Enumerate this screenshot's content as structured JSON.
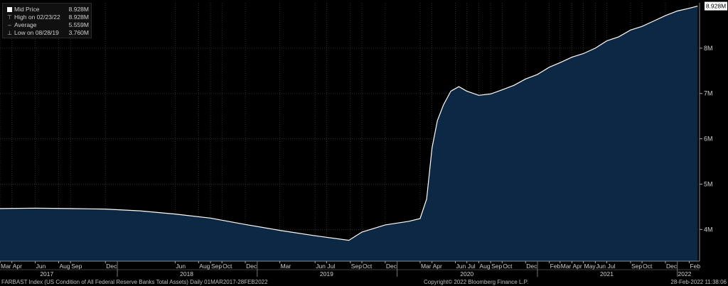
{
  "legend": {
    "mid_label": "Mid Price",
    "mid_value": "8.928M",
    "high_label": "High on 02/23/22",
    "high_value": "8.928M",
    "avg_label": "Average",
    "avg_value": "5.559M",
    "low_label": "Low on 08/28/19",
    "low_value": "3.760M"
  },
  "last_price_tag": "8.928M",
  "footer": {
    "left": "FARBAST Index (US Condition of All Federal Reserve Banks Total Assets)  Daily 01MAR2017-28FEB2022",
    "center": "Copyright© 2022 Bloomberg Finance L.P.",
    "right": "28-Feb-2022 11:38:06"
  },
  "colors": {
    "background": "#000000",
    "area_fill": "#0d2845",
    "line": "#ffffff",
    "grid": "#3a3a3a",
    "text": "#cfcfcf"
  },
  "chart_data": {
    "type": "area",
    "title": "",
    "xlabel": "",
    "ylabel": "",
    "x_start": "2017-03-01",
    "x_end": "2022-02-28",
    "ylim": [
      3.3,
      9.0
    ],
    "y_ticks": [
      "4M",
      "5M",
      "6M",
      "7M",
      "8M"
    ],
    "y_tick_values": [
      4,
      5,
      6,
      7,
      8
    ],
    "grid": true,
    "series": [
      {
        "values_unit": "M",
        "points": [
          [
            "2017-03-01",
            4.46
          ],
          [
            "2017-06-01",
            4.47
          ],
          [
            "2017-09-01",
            4.46
          ],
          [
            "2017-12-01",
            4.45
          ],
          [
            "2018-03-01",
            4.41
          ],
          [
            "2018-06-01",
            4.34
          ],
          [
            "2018-09-01",
            4.25
          ],
          [
            "2018-12-01",
            4.11
          ],
          [
            "2019-03-01",
            3.98
          ],
          [
            "2019-06-01",
            3.86
          ],
          [
            "2019-08-28",
            3.76
          ],
          [
            "2019-10-01",
            3.94
          ],
          [
            "2019-12-01",
            4.1
          ],
          [
            "2020-02-01",
            4.18
          ],
          [
            "2020-03-01",
            4.24
          ],
          [
            "2020-03-18",
            4.67
          ],
          [
            "2020-04-01",
            5.8
          ],
          [
            "2020-04-15",
            6.4
          ],
          [
            "2020-05-01",
            6.75
          ],
          [
            "2020-05-20",
            7.05
          ],
          [
            "2020-06-10",
            7.15
          ],
          [
            "2020-07-01",
            7.05
          ],
          [
            "2020-08-01",
            6.96
          ],
          [
            "2020-09-01",
            6.99
          ],
          [
            "2020-10-01",
            7.08
          ],
          [
            "2020-11-01",
            7.18
          ],
          [
            "2020-12-01",
            7.32
          ],
          [
            "2021-01-01",
            7.42
          ],
          [
            "2021-02-01",
            7.58
          ],
          [
            "2021-03-01",
            7.68
          ],
          [
            "2021-04-01",
            7.8
          ],
          [
            "2021-05-01",
            7.88
          ],
          [
            "2021-06-01",
            8.0
          ],
          [
            "2021-07-01",
            8.16
          ],
          [
            "2021-08-01",
            8.25
          ],
          [
            "2021-09-01",
            8.4
          ],
          [
            "2021-10-01",
            8.48
          ],
          [
            "2021-11-01",
            8.6
          ],
          [
            "2021-12-01",
            8.72
          ],
          [
            "2022-01-01",
            8.82
          ],
          [
            "2022-02-01",
            8.88
          ],
          [
            "2022-02-23",
            8.928
          ]
        ]
      }
    ],
    "month_ticks": [
      {
        "date": "2017-03-01",
        "label": "Mar"
      },
      {
        "date": "2017-04-01",
        "label": "Apr"
      },
      {
        "date": "2017-06-01",
        "label": "Jun"
      },
      {
        "date": "2017-08-01",
        "label": "Aug"
      },
      {
        "date": "2017-09-01",
        "label": "Sep"
      },
      {
        "date": "2017-12-01",
        "label": "Dec"
      },
      {
        "date": "2018-06-01",
        "label": "Jun"
      },
      {
        "date": "2018-08-01",
        "label": "Aug"
      },
      {
        "date": "2018-09-01",
        "label": "Sep"
      },
      {
        "date": "2018-10-01",
        "label": "Oct"
      },
      {
        "date": "2018-12-01",
        "label": "Dec"
      },
      {
        "date": "2019-03-01",
        "label": "Mar"
      },
      {
        "date": "2019-06-01",
        "label": "Jun"
      },
      {
        "date": "2019-07-01",
        "label": "Jul"
      },
      {
        "date": "2019-09-01",
        "label": "Sep"
      },
      {
        "date": "2019-10-01",
        "label": "Oct"
      },
      {
        "date": "2019-12-01",
        "label": "Dec"
      },
      {
        "date": "2020-03-01",
        "label": "Mar"
      },
      {
        "date": "2020-04-01",
        "label": "Apr"
      },
      {
        "date": "2020-06-01",
        "label": "Jun"
      },
      {
        "date": "2020-07-01",
        "label": "Jul"
      },
      {
        "date": "2020-08-01",
        "label": "Aug"
      },
      {
        "date": "2020-09-01",
        "label": "Sep"
      },
      {
        "date": "2020-10-01",
        "label": "Oct"
      },
      {
        "date": "2020-12-01",
        "label": "Dec"
      },
      {
        "date": "2021-02-01",
        "label": "Feb"
      },
      {
        "date": "2021-03-01",
        "label": "Mar"
      },
      {
        "date": "2021-04-01",
        "label": "Apr"
      },
      {
        "date": "2021-05-01",
        "label": "May"
      },
      {
        "date": "2021-06-01",
        "label": "Jun"
      },
      {
        "date": "2021-07-01",
        "label": "Jul"
      },
      {
        "date": "2021-09-01",
        "label": "Sep"
      },
      {
        "date": "2021-10-01",
        "label": "Oct"
      },
      {
        "date": "2021-12-01",
        "label": "Dec"
      },
      {
        "date": "2022-02-01",
        "label": "Feb"
      }
    ],
    "year_labels": [
      {
        "date": "2017-07-01",
        "label": "2017"
      },
      {
        "date": "2018-07-01",
        "label": "2018"
      },
      {
        "date": "2019-07-01",
        "label": "2019"
      },
      {
        "date": "2020-07-01",
        "label": "2020"
      },
      {
        "date": "2021-07-01",
        "label": "2021"
      },
      {
        "date": "2022-01-20",
        "label": "2022"
      }
    ],
    "year_boundaries": [
      "2018-01-01",
      "2019-01-01",
      "2020-01-01",
      "2021-01-01",
      "2022-01-01"
    ]
  }
}
